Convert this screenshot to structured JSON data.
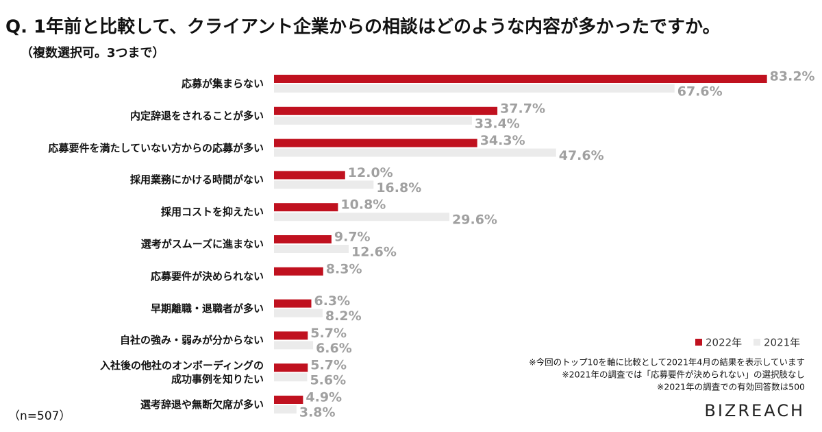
{
  "chart_data": {
    "type": "bar",
    "orientation": "horizontal",
    "title": "Q. 1年前と比較して、クライアント企業からの相談はどのような内容が多かったですか。",
    "subtitle": "（複数選択可。3つまで）",
    "categories": [
      "応募が集まらない",
      "内定辞退をされることが多い",
      "応募要件を満たしていない方からの応募が多い",
      "採用業務にかける時間がない",
      "採用コストを抑えたい",
      "選考がスムーズに進まない",
      "応募要件が決められない",
      "早期離職・退職者が多い",
      "自社の強み・弱みが分からない",
      "入社後の他社のオンボーディングの\n成功事例を知りたい",
      "選考辞退や無断欠席が多い"
    ],
    "series": [
      {
        "name": "2022年",
        "color": "#c0111f",
        "values": [
          83.2,
          37.7,
          34.3,
          12.0,
          10.8,
          9.7,
          8.3,
          6.3,
          5.7,
          5.7,
          4.9
        ],
        "value_labels": [
          "83.2%",
          "37.7%",
          "34.3%",
          "12.0%",
          "10.8%",
          "9.7%",
          "8.3%",
          "6.3%",
          "5.7%",
          "5.7%",
          "4.9%"
        ]
      },
      {
        "name": "2021年",
        "color": "#ebebeb",
        "values": [
          67.6,
          33.4,
          47.6,
          16.8,
          29.6,
          12.6,
          null,
          8.2,
          6.6,
          5.6,
          3.8
        ],
        "value_labels": [
          "67.6%",
          "33.4%",
          "47.6%",
          "16.8%",
          "29.6%",
          "12.6%",
          null,
          "8.2%",
          "6.6%",
          "5.6%",
          "3.8%"
        ]
      }
    ],
    "legend": "bottom-right",
    "sample_size": "（n=507）",
    "notes": [
      "※今回のトップ10を軸に比較として2021年4月の結果を表示しています",
      "※2021年の調査では「応募要件が決められない」の選択肢なし",
      "※2021年の調査での有効回答数は500"
    ],
    "logo": "BIZREACH"
  }
}
